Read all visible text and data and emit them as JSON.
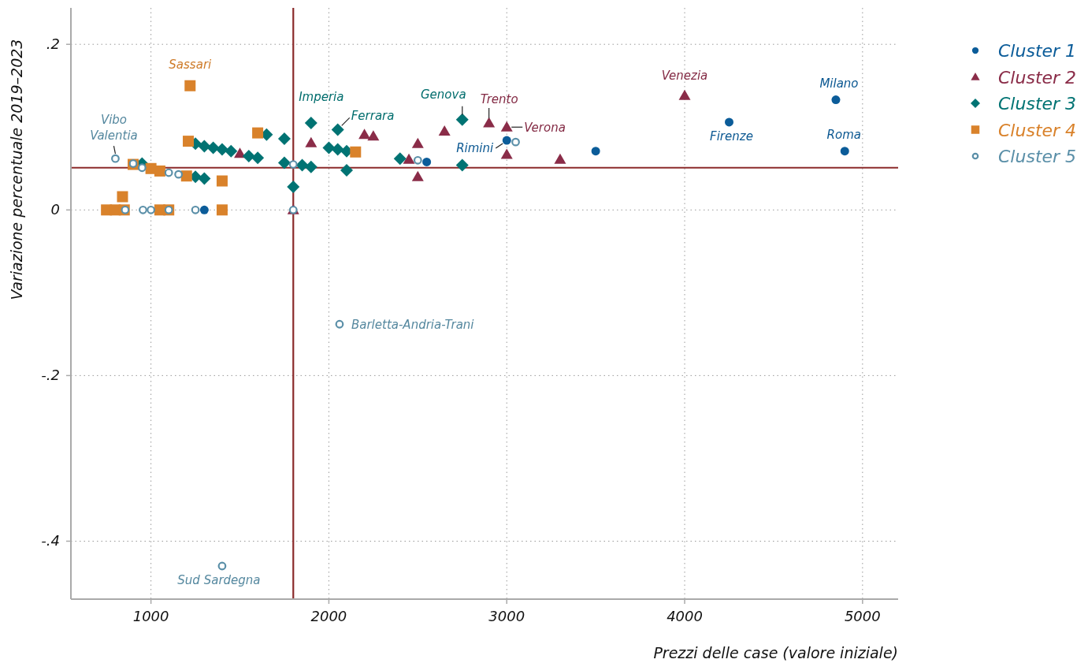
{
  "chart_data": {
    "type": "scatter",
    "xlabel": "Prezzi delle case (valore iniziale)",
    "ylabel": "Variazione percentuale 2019–2023",
    "xlim": [
      550,
      5200
    ],
    "ylim": [
      -0.47,
      0.244
    ],
    "xticks": [
      1000,
      2000,
      3000,
      4000,
      5000
    ],
    "yticks": [
      {
        "value": 0.2,
        "label": ".2"
      },
      0,
      {
        "value": -0.2,
        "label": "-.2"
      },
      {
        "value": -0.4,
        "label": "-.4"
      }
    ],
    "grid": true,
    "legend": "top right",
    "series": [
      {
        "name": "Cluster 1",
        "color": "#0b5c99",
        "marker": "circle",
        "x": [
          1300,
          2550,
          3000,
          3500,
          4250,
          4850,
          4900
        ],
        "values": [
          0,
          0.058,
          0.084,
          0.071,
          0.106,
          0.133,
          0.071
        ]
      },
      {
        "name": "Cluster 2",
        "color": "#8a2c48",
        "marker": "triangle",
        "x": [
          1500,
          1800,
          1900,
          2200,
          2250,
          2450,
          2500,
          2500,
          2650,
          2900,
          3000,
          3000,
          3300,
          4000
        ],
        "values": [
          0.068,
          0,
          0.081,
          0.091,
          0.089,
          0.061,
          0.08,
          0.04,
          0.095,
          0.105,
          0.1,
          0.067,
          0.061,
          0.138
        ]
      },
      {
        "name": "Cluster 3",
        "color": "#007373",
        "marker": "diamond",
        "x": [
          950,
          1250,
          1300,
          1350,
          1400,
          1450,
          1550,
          1600,
          1250,
          1300,
          1650,
          1750,
          1750,
          1800,
          1850,
          1900,
          1900,
          2000,
          2050,
          2050,
          2100,
          2100,
          2400,
          2750,
          2750
        ],
        "values": [
          0.056,
          0.08,
          0.077,
          0.075,
          0.073,
          0.071,
          0.065,
          0.063,
          0.04,
          0.038,
          0.091,
          0.086,
          0.057,
          0.028,
          0.054,
          0.052,
          0.105,
          0.075,
          0.097,
          0.073,
          0.071,
          0.048,
          0.062,
          0.109,
          0.054
        ]
      },
      {
        "name": "Cluster 4",
        "color": "#d9822b",
        "marker": "square",
        "x": [
          750,
          800,
          850,
          840,
          900,
          1000,
          1050,
          1050,
          1100,
          1200,
          1210,
          1220,
          1400,
          1400,
          1600,
          2150
        ],
        "values": [
          0,
          0,
          0,
          0.016,
          0.055,
          0.05,
          0.047,
          0,
          0,
          0.041,
          0.083,
          0.15,
          0.035,
          0,
          0.093,
          0.07
        ]
      },
      {
        "name": "Cluster 5",
        "color": "#5a8fa8",
        "marker": "circle",
        "x": [
          800,
          855,
          900,
          950,
          955,
          1000,
          1100,
          1100,
          1155,
          1250,
          1800,
          1800,
          2060,
          2500,
          3050,
          1400
        ],
        "values": [
          0.062,
          0,
          0.056,
          0.051,
          0,
          0,
          0.045,
          0,
          0.043,
          0,
          0.055,
          0,
          -0.138,
          0.06,
          0.082,
          -0.43
        ]
      }
    ],
    "ref_lines": [
      {
        "axis": "x",
        "value": 1800,
        "color": "#8b2b2b"
      },
      {
        "axis": "y",
        "value": 0.051,
        "color": "#8b2b2b"
      }
    ],
    "annotations": [
      {
        "text": "Sassari",
        "x": 1220,
        "y": 0.15
      },
      {
        "text": "Vibo Valentia",
        "x": 800,
        "y": 0.062
      },
      {
        "text": "Imperia",
        "x": 1900,
        "y": 0.105
      },
      {
        "text": "Ferrara",
        "x": 2050,
        "y": 0.097
      },
      {
        "text": "Genova",
        "x": 2750,
        "y": 0.109
      },
      {
        "text": "Trento",
        "x": 2900,
        "y": 0.105
      },
      {
        "text": "Verona",
        "x": 3000,
        "y": 0.1
      },
      {
        "text": "Rimini",
        "x": 3000,
        "y": 0.084
      },
      {
        "text": "Venezia",
        "x": 4000,
        "y": 0.138
      },
      {
        "text": "Milano",
        "x": 4850,
        "y": 0.133
      },
      {
        "text": "Firenze",
        "x": 4250,
        "y": 0.106
      },
      {
        "text": "Roma",
        "x": 4900,
        "y": 0.071
      },
      {
        "text": "Barletta-Andria-Trani",
        "x": 2060,
        "y": -0.138
      },
      {
        "text": "Sud Sardegna",
        "x": 1400,
        "y": -0.43
      }
    ]
  }
}
